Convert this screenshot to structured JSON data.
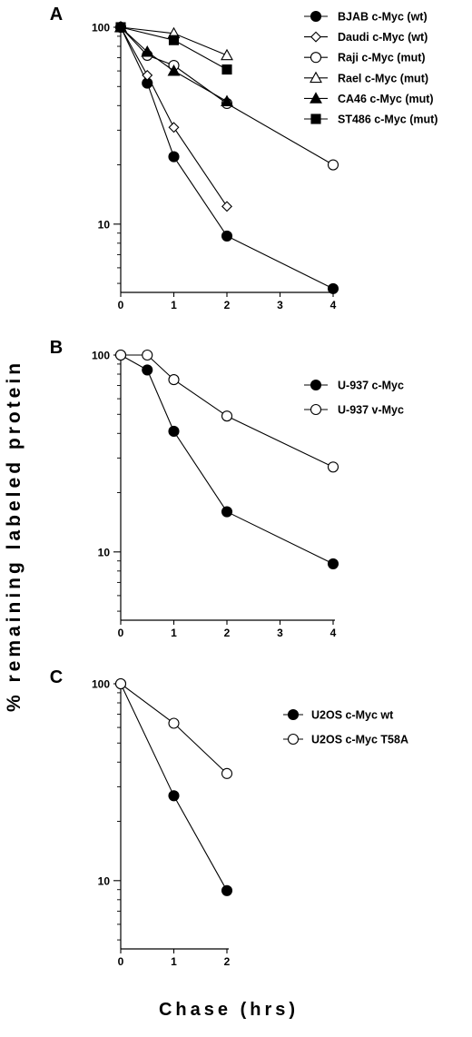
{
  "figure": {
    "ylabel": "% remaining labeled protein",
    "xlabel": "Chase (hrs)"
  },
  "chart_data": [
    {
      "panel": "A",
      "type": "line",
      "y_scale": "log",
      "ylim": [
        4.5,
        100
      ],
      "xlim": [
        0,
        4
      ],
      "x_ticks": [
        "0",
        "1",
        "2",
        "3",
        "4"
      ],
      "y_ticks": [
        "100",
        "10"
      ],
      "legend_position": "top-right",
      "series": [
        {
          "name": "BJAB c-Myc (wt)",
          "marker": "filled-circle",
          "x": [
            0,
            0.5,
            1,
            2,
            4
          ],
          "y": [
            100,
            52,
            22,
            8.7,
            4.7
          ]
        },
        {
          "name": "Daudi c-Myc (wt)",
          "marker": "open-diamond",
          "x": [
            0,
            0.5,
            1,
            2
          ],
          "y": [
            100,
            57,
            31,
            12.3
          ]
        },
        {
          "name": "Raji c-Myc (mut)",
          "marker": "open-circle",
          "x": [
            0,
            0.5,
            1,
            2,
            4
          ],
          "y": [
            100,
            72,
            64,
            41,
            20
          ]
        },
        {
          "name": "Rael c-Myc (mut)",
          "marker": "open-triangle",
          "x": [
            0,
            1,
            2
          ],
          "y": [
            100,
            93,
            72
          ]
        },
        {
          "name": "CA46 c-Myc (mut)",
          "marker": "filled-triangle",
          "x": [
            0,
            0.5,
            1,
            2
          ],
          "y": [
            100,
            75,
            60,
            42
          ]
        },
        {
          "name": "ST486 c-Myc (mut)",
          "marker": "filled-square",
          "x": [
            0,
            1,
            2
          ],
          "y": [
            100,
            86,
            61
          ]
        }
      ]
    },
    {
      "panel": "B",
      "type": "line",
      "y_scale": "log",
      "ylim": [
        4.5,
        100
      ],
      "xlim": [
        0,
        4
      ],
      "x_ticks": [
        "0",
        "1",
        "2",
        "3",
        "4"
      ],
      "y_ticks": [
        "100",
        "10"
      ],
      "legend_position": "top-right",
      "series": [
        {
          "name": "U-937 c-Myc",
          "marker": "filled-circle",
          "x": [
            0,
            0.5,
            1,
            2,
            4
          ],
          "y": [
            100,
            84,
            41,
            16,
            8.7
          ]
        },
        {
          "name": "U-937 v-Myc",
          "marker": "open-circle",
          "x": [
            0,
            0.5,
            1,
            2,
            4
          ],
          "y": [
            100,
            100,
            75,
            49,
            27
          ]
        }
      ]
    },
    {
      "panel": "C",
      "type": "line",
      "y_scale": "log",
      "ylim": [
        4.5,
        100
      ],
      "xlim": [
        0,
        2
      ],
      "x_ticks": [
        "0",
        "1",
        "2"
      ],
      "y_ticks": [
        "100",
        "10"
      ],
      "legend_position": "top-right",
      "series": [
        {
          "name": "U2OS c-Myc wt",
          "marker": "filled-circle",
          "x": [
            0,
            1,
            2
          ],
          "y": [
            100,
            27,
            8.9
          ]
        },
        {
          "name": "U2OS c-Myc T58A",
          "marker": "open-circle",
          "x": [
            0,
            1,
            2
          ],
          "y": [
            100,
            63,
            35
          ]
        }
      ]
    }
  ]
}
